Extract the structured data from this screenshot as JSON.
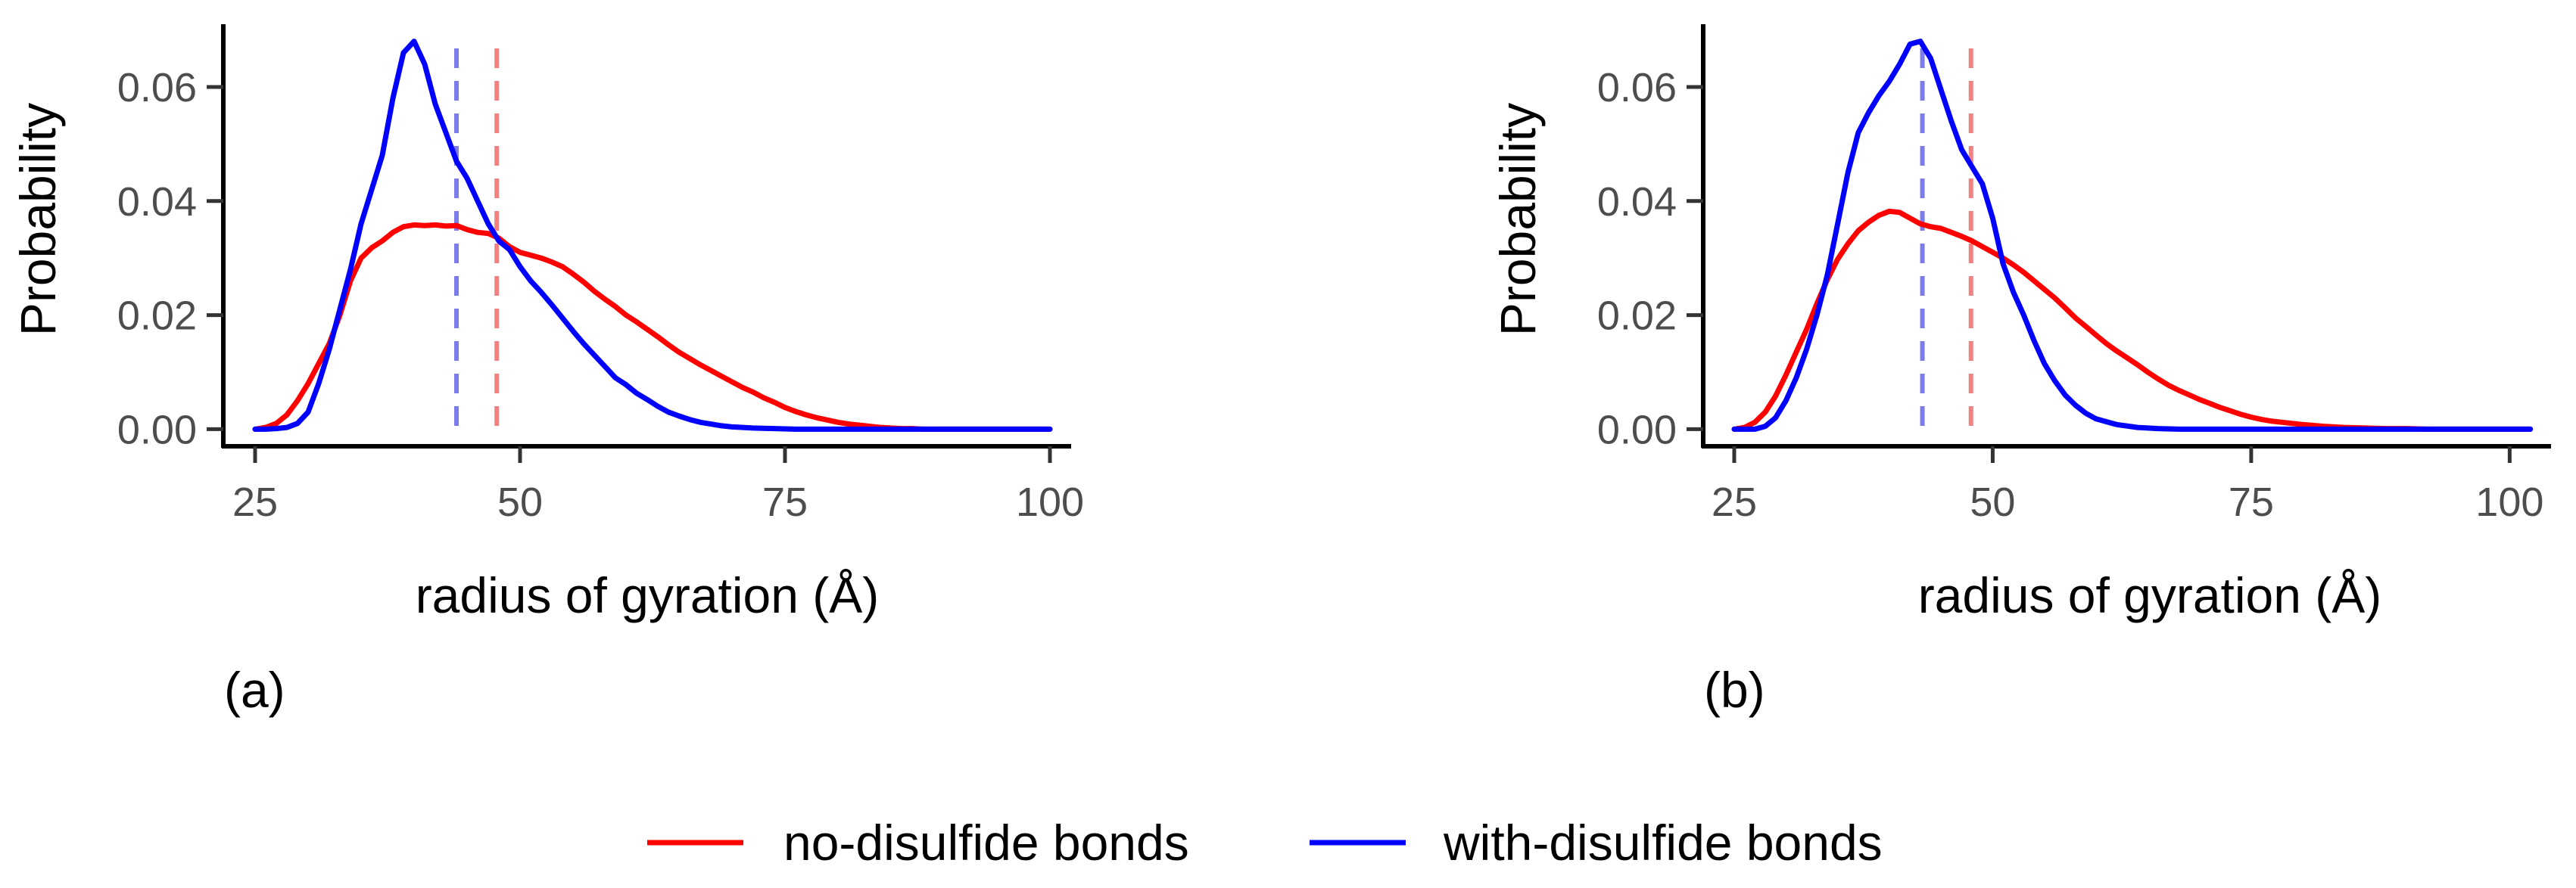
{
  "legend": {
    "items": [
      {
        "label": "no-disulfide bonds",
        "color": "#ff0000"
      },
      {
        "label": "with-disulfide bonds",
        "color": "#0000ff"
      }
    ]
  },
  "chart_data": [
    {
      "type": "line",
      "panel_label": "(a)",
      "xlabel": "radius of gyration (Å)",
      "ylabel": "Probability",
      "xlim": [
        22,
        102
      ],
      "ylim": [
        -0.003,
        0.071
      ],
      "xticks": [
        25,
        50,
        75,
        100
      ],
      "xtick_labels": [
        "25",
        "50",
        "75",
        "100"
      ],
      "yticks": [
        0.0,
        0.02,
        0.04,
        0.06
      ],
      "ytick_labels": [
        "0.00",
        "0.02",
        "0.04",
        "0.06"
      ],
      "grid": false,
      "series": [
        {
          "name": "no-disulfide bonds",
          "color": "#ff0000",
          "x": [
            25,
            26,
            27,
            28,
            29,
            30,
            31,
            32,
            33,
            34,
            35,
            36,
            37,
            38,
            39,
            40,
            41,
            42,
            43,
            44,
            45,
            46,
            47,
            48,
            49,
            50,
            51,
            52,
            53,
            54,
            55,
            56,
            57,
            58,
            59,
            60,
            61,
            62,
            63,
            64,
            65,
            66,
            67,
            68,
            69,
            70,
            71,
            72,
            73,
            74,
            75,
            76,
            77,
            78,
            79,
            80,
            81,
            82,
            83,
            84,
            85,
            86,
            87,
            88,
            90,
            92,
            94,
            96,
            98,
            100
          ],
          "y": [
            0.0,
            0.0003,
            0.001,
            0.0025,
            0.005,
            0.008,
            0.0115,
            0.015,
            0.02,
            0.026,
            0.03,
            0.0318,
            0.033,
            0.0345,
            0.0355,
            0.0358,
            0.0357,
            0.0358,
            0.0356,
            0.0357,
            0.035,
            0.0345,
            0.0343,
            0.0335,
            0.032,
            0.031,
            0.0305,
            0.03,
            0.0293,
            0.0285,
            0.0272,
            0.0258,
            0.0242,
            0.0228,
            0.0215,
            0.02,
            0.0188,
            0.0175,
            0.0162,
            0.0148,
            0.0135,
            0.0124,
            0.0113,
            0.0103,
            0.0093,
            0.0083,
            0.0073,
            0.0065,
            0.0055,
            0.0047,
            0.0038,
            0.0031,
            0.0025,
            0.002,
            0.0016,
            0.0012,
            0.0009,
            0.0007,
            0.0005,
            0.0003,
            0.0002,
            0.0001,
            0.0001,
            0.0,
            0.0,
            0.0,
            0.0,
            0.0,
            0.0,
            0.0
          ]
        },
        {
          "name": "with-disulfide bonds",
          "color": "#0000ff",
          "x": [
            25,
            26,
            27,
            28,
            29,
            30,
            31,
            32,
            33,
            34,
            35,
            36,
            37,
            38,
            39,
            40,
            41,
            42,
            43,
            44,
            45,
            46,
            47,
            48,
            49,
            50,
            51,
            52,
            53,
            54,
            55,
            56,
            57,
            58,
            59,
            60,
            61,
            62,
            63,
            64,
            65,
            66,
            67,
            68,
            69,
            70,
            72,
            74,
            76,
            78,
            80,
            85,
            90,
            95,
            100
          ],
          "y": [
            0.0,
            0.0,
            0.0001,
            0.0003,
            0.001,
            0.003,
            0.008,
            0.014,
            0.021,
            0.028,
            0.036,
            0.042,
            0.048,
            0.058,
            0.066,
            0.068,
            0.064,
            0.057,
            0.052,
            0.047,
            0.044,
            0.04,
            0.036,
            0.033,
            0.0315,
            0.0285,
            0.026,
            0.024,
            0.0218,
            0.0195,
            0.0172,
            0.015,
            0.013,
            0.011,
            0.009,
            0.0078,
            0.0063,
            0.0052,
            0.004,
            0.003,
            0.0023,
            0.0017,
            0.0012,
            0.0009,
            0.0006,
            0.0004,
            0.0002,
            0.0001,
            0.0,
            0.0,
            0.0,
            0.0,
            0.0,
            0.0,
            0.0
          ]
        }
      ],
      "vlines": [
        {
          "name": "with-disulfide mean",
          "x": 44.0,
          "color": "#7b7bea",
          "style": "dashed"
        },
        {
          "name": "no-disulfide mean",
          "x": 47.8,
          "color": "#f08282",
          "style": "dashed"
        }
      ]
    },
    {
      "type": "line",
      "panel_label": "(b)",
      "xlabel": "radius of gyration (Å)",
      "ylabel": "Probability",
      "xlim": [
        22,
        104
      ],
      "ylim": [
        -0.003,
        0.071
      ],
      "xticks": [
        25,
        50,
        75,
        100
      ],
      "xtick_labels": [
        "25",
        "50",
        "75",
        "100"
      ],
      "yticks": [
        0.0,
        0.02,
        0.04,
        0.06
      ],
      "ytick_labels": [
        "0.00",
        "0.02",
        "0.04",
        "0.06"
      ],
      "grid": false,
      "series": [
        {
          "name": "no-disulfide bonds",
          "color": "#ff0000",
          "x": [
            25,
            26,
            27,
            28,
            29,
            30,
            31,
            32,
            33,
            34,
            35,
            36,
            37,
            38,
            39,
            40,
            41,
            42,
            43,
            44,
            45,
            46,
            47,
            48,
            49,
            50,
            51,
            52,
            53,
            54,
            55,
            56,
            57,
            58,
            59,
            60,
            61,
            62,
            63,
            64,
            65,
            66,
            67,
            68,
            69,
            70,
            71,
            72,
            73,
            74,
            75,
            76,
            77,
            78,
            79,
            80,
            82,
            84,
            86,
            88,
            90,
            92,
            94,
            96,
            98,
            100,
            102
          ],
          "y": [
            0.0,
            0.0003,
            0.0012,
            0.003,
            0.0058,
            0.0095,
            0.0135,
            0.0175,
            0.022,
            0.0262,
            0.0298,
            0.0325,
            0.0348,
            0.0363,
            0.0375,
            0.0382,
            0.038,
            0.037,
            0.036,
            0.0355,
            0.0352,
            0.0345,
            0.0338,
            0.033,
            0.032,
            0.031,
            0.03,
            0.0288,
            0.0275,
            0.026,
            0.0245,
            0.023,
            0.0213,
            0.0195,
            0.018,
            0.0165,
            0.015,
            0.0137,
            0.0125,
            0.0113,
            0.01,
            0.0088,
            0.0077,
            0.0068,
            0.006,
            0.0052,
            0.0045,
            0.0038,
            0.0032,
            0.0026,
            0.0021,
            0.0017,
            0.0014,
            0.0012,
            0.001,
            0.0008,
            0.0005,
            0.0003,
            0.0002,
            0.0001,
            0.0001,
            0.0,
            0.0,
            0.0,
            0.0,
            0.0,
            0.0
          ]
        },
        {
          "name": "with-disulfide bonds",
          "color": "#0000ff",
          "x": [
            25,
            26,
            27,
            28,
            29,
            30,
            31,
            32,
            33,
            34,
            35,
            36,
            37,
            38,
            39,
            40,
            41,
            42,
            43,
            44,
            45,
            46,
            47,
            48,
            49,
            50,
            51,
            52,
            53,
            54,
            55,
            56,
            57,
            58,
            59,
            60,
            62,
            64,
            66,
            68,
            70,
            75,
            80,
            85,
            90,
            95,
            102
          ],
          "y": [
            0.0,
            0.0,
            0.0,
            0.0005,
            0.002,
            0.005,
            0.009,
            0.014,
            0.02,
            0.027,
            0.036,
            0.045,
            0.052,
            0.0555,
            0.0585,
            0.061,
            0.064,
            0.0675,
            0.068,
            0.065,
            0.0595,
            0.054,
            0.049,
            0.046,
            0.043,
            0.037,
            0.029,
            0.024,
            0.02,
            0.0155,
            0.0115,
            0.0085,
            0.006,
            0.0042,
            0.0028,
            0.0018,
            0.0008,
            0.0003,
            0.0001,
            0.0,
            0.0,
            0.0,
            0.0,
            0.0,
            0.0,
            0.0,
            0.0
          ]
        }
      ],
      "vlines": [
        {
          "name": "with-disulfide mean",
          "x": 43.2,
          "color": "#7b7bea",
          "style": "dashed"
        },
        {
          "name": "no-disulfide mean",
          "x": 47.9,
          "color": "#f08282",
          "style": "dashed"
        }
      ]
    }
  ]
}
